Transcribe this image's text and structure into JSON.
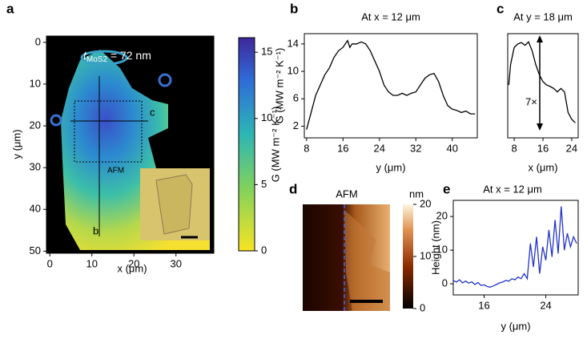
{
  "chart_data": [
    {
      "type": "heatmap",
      "label": "a",
      "xlabel": "x (μm)",
      "ylabel": "y (μm)",
      "xlim": [
        -0.8,
        39
      ],
      "ylim": [
        50.5,
        -1.5
      ],
      "xticks": [
        0,
        10,
        20,
        30
      ],
      "yticks": [
        0,
        10,
        20,
        30,
        40,
        50
      ],
      "annotation": {
        "t": "t",
        "sub": "MoS2",
        "rest": " = 72 nm"
      },
      "markers": [
        "c",
        "b",
        "AFM"
      ],
      "colorbar": {
        "label": "G (MW m⁻² K⁻¹)",
        "lim": [
          0,
          16.1
        ],
        "ticks": [
          0,
          5,
          10,
          15
        ]
      }
    },
    {
      "type": "line",
      "label": "b",
      "title": "At x = 12 μm",
      "xlabel": "y (μm)",
      "ylabel": "G (MW m⁻² K⁻¹)",
      "xlim": [
        7.5,
        45.5
      ],
      "ylim": [
        0.3,
        15.5
      ],
      "xticks": [
        8,
        16,
        24,
        32,
        40
      ],
      "yticks": [
        2,
        6,
        10,
        14
      ],
      "series": [
        {
          "color": "#000000",
          "x": [
            8,
            9,
            10,
            11,
            12,
            13,
            14,
            15,
            16,
            17,
            17.5,
            18,
            19,
            20,
            21,
            22,
            23,
            24,
            25,
            26,
            27,
            28,
            29,
            30,
            31,
            32,
            33,
            34,
            35,
            36,
            37,
            38,
            39,
            40,
            41,
            42,
            43,
            44,
            45
          ],
          "values": [
            1.5,
            4,
            6.5,
            8,
            9.5,
            10.5,
            12,
            13,
            13.5,
            14.5,
            13.5,
            14,
            14,
            14.3,
            14,
            13,
            11.5,
            10,
            8,
            7,
            6.5,
            6.5,
            6.8,
            6.5,
            6.8,
            7,
            8,
            9,
            9.5,
            9.7,
            8.5,
            6.5,
            5,
            4.5,
            4.3,
            4,
            4.2,
            3.8,
            3.8
          ]
        }
      ]
    },
    {
      "type": "line",
      "label": "c",
      "title": "At y = 18 μm",
      "xlabel": "x (μm)",
      "annotation": "7×",
      "xlim": [
        6.2,
        25.8
      ],
      "ylim": [
        0.3,
        15.5
      ],
      "xticks": [
        8,
        16,
        24
      ],
      "series": [
        {
          "color": "#000000",
          "x": [
            6.5,
            7,
            8,
            9,
            10,
            11,
            12,
            13,
            14,
            15,
            16,
            17,
            18,
            19,
            20,
            21,
            22,
            23,
            24,
            25
          ],
          "values": [
            8,
            11,
            13.5,
            14,
            14.2,
            13.8,
            14.3,
            13,
            11,
            9.5,
            8.5,
            8,
            7.8,
            7.5,
            7,
            7.5,
            7,
            4,
            3,
            2.5
          ]
        }
      ]
    },
    {
      "type": "heatmap",
      "label": "d",
      "title": "AFM",
      "colorbar": {
        "label": "nm",
        "lim": [
          0,
          20
        ],
        "ticks": [
          0,
          10,
          20
        ]
      }
    },
    {
      "type": "line",
      "label": "e",
      "title": "At x = 12 μm",
      "xlabel": "y (μm)",
      "ylabel": "Height (nm)",
      "xlim": [
        12,
        28.2
      ],
      "ylim": [
        -3.3,
        24.8
      ],
      "xticks": [
        16,
        24
      ],
      "yticks": [
        0,
        10,
        20
      ],
      "series": [
        {
          "color": "#2233cc",
          "x": [
            12,
            12.4,
            12.8,
            13.2,
            13.6,
            14,
            14.4,
            14.8,
            15.2,
            15.6,
            16,
            16.4,
            16.8,
            17.2,
            17.6,
            18,
            18.4,
            18.8,
            19.2,
            19.6,
            20,
            20.4,
            20.8,
            21.2,
            21.6,
            22,
            22.4,
            22.8,
            23.2,
            23.6,
            24,
            24.4,
            24.8,
            25.2,
            25.6,
            26,
            26.4,
            26.8,
            27.2,
            27.6,
            28
          ],
          "values": [
            1,
            0.5,
            1.2,
            0.3,
            0.8,
            0.2,
            0.6,
            -0.2,
            0.4,
            -0.5,
            -0.3,
            -0.8,
            -1,
            -0.6,
            -0.2,
            0.3,
            0.5,
            1,
            0.8,
            1.5,
            1.2,
            2,
            1.5,
            3,
            1.5,
            12,
            5,
            14,
            3,
            11,
            7,
            16,
            8,
            19,
            9,
            23,
            10,
            15,
            11,
            14,
            12
          ]
        }
      ]
    }
  ]
}
